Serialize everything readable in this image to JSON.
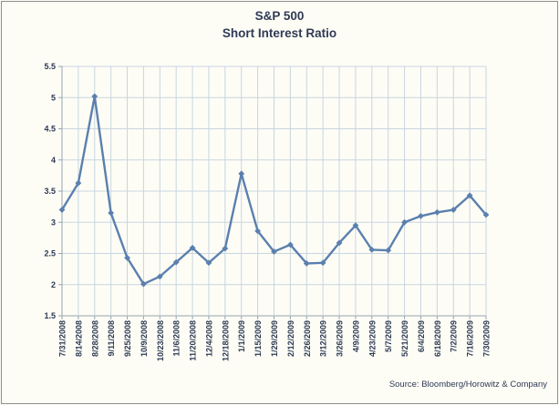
{
  "chart": {
    "title_line1": "S&P 500",
    "title_line2": "Short Interest Ratio",
    "source": "Source: Bloomberg/Horowitz & Company"
  },
  "chart_data": {
    "type": "line",
    "title": "S&P 500 Short Interest Ratio",
    "categories": [
      "7/31/2008",
      "8/14/2008",
      "8/28/2008",
      "9/11/2008",
      "9/25/2008",
      "10/9/2008",
      "10/23/2008",
      "11/6/2008",
      "11/20/2008",
      "12/4/2008",
      "12/18/2008",
      "1/1/2009",
      "1/15/2009",
      "1/29/2009",
      "2/12/2009",
      "2/26/2009",
      "3/12/2009",
      "3/26/2009",
      "4/9/2009",
      "4/23/2009",
      "5/7/2009",
      "5/21/2009",
      "6/4/2009",
      "6/18/2009",
      "7/2/2009",
      "7/16/2009",
      "7/30/2009"
    ],
    "values": [
      3.2,
      3.63,
      5.02,
      3.15,
      2.43,
      2.01,
      2.13,
      2.36,
      2.59,
      2.35,
      2.58,
      3.78,
      2.86,
      2.53,
      2.64,
      2.34,
      2.35,
      2.67,
      2.95,
      2.56,
      2.55,
      3.0,
      3.1,
      3.16,
      3.2,
      3.43,
      3.12
    ],
    "xlabel": "",
    "ylabel": "",
    "ylim": [
      1.5,
      5.5
    ],
    "ytick_step": 0.5,
    "grid": "both",
    "legend": "none",
    "marker": "diamond",
    "series_color": "#5b80ae",
    "gridline_color": "#c9d5e0",
    "axis_color": "#99a4ae",
    "label_color": "#2e3a54"
  }
}
